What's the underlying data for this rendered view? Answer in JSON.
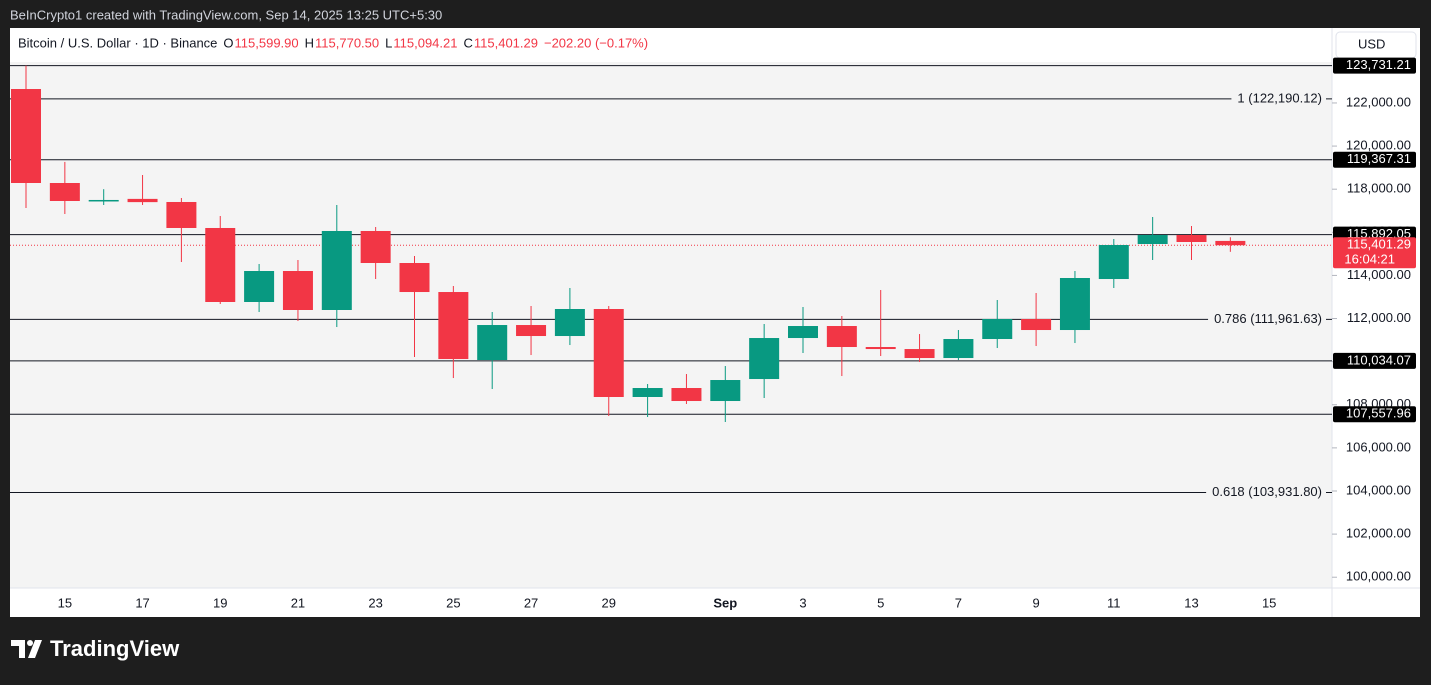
{
  "chart_data": {
    "type": "candlestick",
    "source": "BeInCrypto1 created with TradingView.com, Sep 14, 2025 13:25 UTC+5:30",
    "legend": {
      "name": "Bitcoin / U.S. Dollar · 1D · Binance",
      "open_label": "O",
      "open": "115,599.90",
      "high_label": "H",
      "high": "115,770.50",
      "low_label": "L",
      "low": "115,094.21",
      "close_label": "C",
      "close": "115,401.29",
      "change": "−202.20 (−0.17%)"
    },
    "currency": "USD",
    "categories": [
      null,
      "15",
      null,
      "17",
      null,
      "19",
      null,
      "21",
      null,
      "23",
      null,
      "25",
      null,
      "27",
      null,
      "29",
      null,
      null,
      "Sep",
      null,
      "3",
      null,
      "5",
      null,
      "7",
      null,
      "9",
      null,
      "11",
      null,
      "13",
      null,
      "15"
    ],
    "open": [
      122647,
      118287,
      117430,
      117550,
      117406,
      116200,
      112767,
      114205,
      112396,
      116061,
      114576,
      113230,
      110075,
      111699,
      111189,
      112442,
      108360,
      108777,
      108174,
      109194,
      111096,
      111653,
      110679,
      110585,
      110168,
      111050,
      111978,
      111467,
      113833,
      115457,
      115875,
      115599.9,
      null
    ],
    "high": [
      123731,
      119265,
      118000,
      118658,
      117591,
      116756,
      114530,
      114715,
      117266,
      116246,
      114901,
      113509,
      112303,
      112581,
      113416,
      112581,
      108962,
      109426,
      109797,
      111746,
      112535,
      112117,
      113323,
      111281,
      111467,
      112860,
      113184,
      114205,
      115689,
      116710,
      116292,
      115770.5,
      null
    ],
    "low": [
      117127,
      116849,
      117266,
      117266,
      114623,
      112674,
      112303,
      111885,
      111606,
      113833,
      110214,
      109240,
      108730,
      110307,
      110771,
      107479,
      107432,
      108035,
      107200,
      108313,
      110400,
      109333,
      110261,
      109982,
      110075,
      110632,
      110725,
      110864,
      113416,
      114715,
      114715,
      115094.21,
      null
    ],
    "close": [
      118287,
      117452,
      117500,
      117400,
      116200,
      112767,
      114205,
      112396,
      116061,
      114576,
      113230,
      110122,
      111699,
      111189,
      112442,
      108360,
      108777,
      108174,
      109148,
      111096,
      111653,
      110679,
      110585,
      110168,
      111050,
      111978,
      111467,
      113880,
      115411,
      115875,
      115550,
      115401.29,
      null
    ],
    "up_color": "#089981",
    "down_color": "#f23645",
    "ylim": [
      99500,
      123900
    ],
    "yticks": [
      {
        "value": 100000,
        "label": "100,000.00"
      },
      {
        "value": 102000,
        "label": "102,000.00"
      },
      {
        "value": 104000,
        "label": "104,000.00"
      },
      {
        "value": 106000,
        "label": "106,000.00"
      },
      {
        "value": 108000,
        "label": "108,000.00"
      },
      {
        "value": 110000,
        "label": "110,000.00"
      },
      {
        "value": 112000,
        "label": "112,000.00"
      },
      {
        "value": 114000,
        "label": "114,000.00"
      },
      {
        "value": 116000,
        "label": "116,000.00"
      },
      {
        "value": 118000,
        "label": "118,000.00"
      },
      {
        "value": 120000,
        "label": "120,000.00"
      },
      {
        "value": 122000,
        "label": "122,000.00"
      }
    ],
    "levels": [
      {
        "value": 123731.21,
        "label": "123,731.21"
      },
      {
        "value": 119367.31,
        "label": "119,367.31"
      },
      {
        "value": 115892.05,
        "label": "115,892.05"
      },
      {
        "value": 110034.07,
        "label": "110,034.07"
      },
      {
        "value": 107557.96,
        "label": "107,557.96"
      }
    ],
    "fib_levels": [
      {
        "value": 122190.12,
        "label": "1 (122,190.12)"
      },
      {
        "value": 111961.63,
        "label": "0.786 (111,961.63)"
      },
      {
        "value": 103931.8,
        "label": "0.618 (103,931.80)"
      }
    ],
    "last_price": {
      "value": 115401.29,
      "label": "115,401.29",
      "countdown": "16:04:21"
    },
    "watermark": "TradingView"
  }
}
